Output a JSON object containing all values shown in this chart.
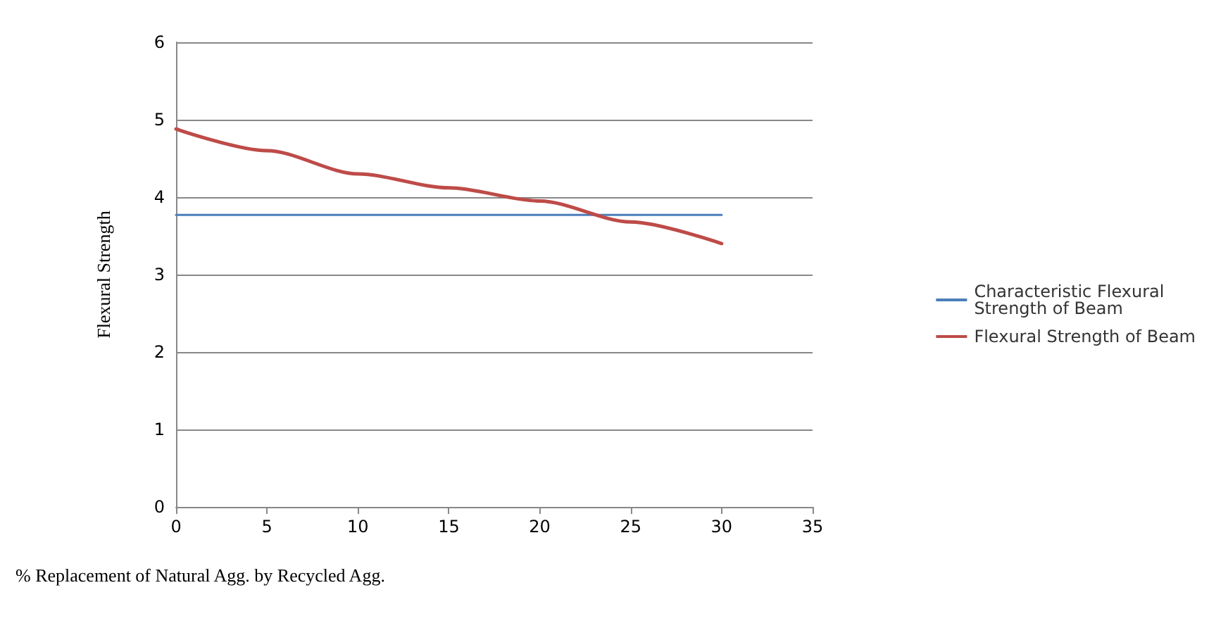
{
  "chart_data": {
    "type": "line",
    "xlabel": "% Replacement of Natural Agg. by Recycled Agg.",
    "ylabel": "Flexural Strength",
    "x": [
      0,
      5,
      10,
      15,
      20,
      25,
      30
    ],
    "series": [
      {
        "name": "Characteristic Flexural Strength of Beam",
        "color": "#4a7ebb",
        "values": [
          3.77,
          3.77,
          3.77,
          3.77,
          3.77,
          3.77,
          3.77
        ]
      },
      {
        "name": "Flexural Strength of Beam",
        "color": "#be4b48",
        "values": [
          4.88,
          4.6,
          4.3,
          4.12,
          3.95,
          3.68,
          3.4
        ]
      }
    ],
    "xlim": [
      0,
      35
    ],
    "xticks": [
      0,
      5,
      10,
      15,
      20,
      25,
      30,
      35
    ],
    "ylim": [
      0,
      6
    ],
    "yticks": [
      0,
      1,
      2,
      3,
      4,
      5,
      6
    ],
    "grid": "y",
    "legend": "right",
    "marker": "none",
    "line_style": "solid"
  }
}
